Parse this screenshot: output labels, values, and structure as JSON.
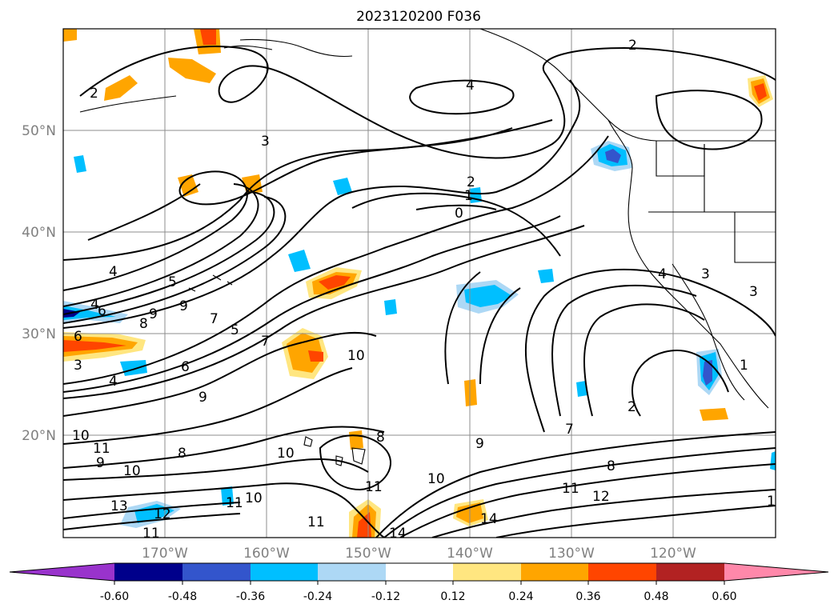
{
  "title": "2023120200 F036",
  "lat_labels": [
    "50°N",
    "40°N",
    "30°N",
    "20°N"
  ],
  "lon_labels": [
    "170°W",
    "160°W",
    "150°W",
    "140°W",
    "130°W",
    "120°W"
  ],
  "colorbar": {
    "ticks": [
      "-0.60",
      "-0.48",
      "-0.36",
      "-0.24",
      "-0.12",
      "0.12",
      "0.24",
      "0.36",
      "0.48",
      "0.60"
    ],
    "colors": [
      "#9933cc",
      "#00008b",
      "#3355cc",
      "#00bfff",
      "#add8f5",
      "#ffffff",
      "#ffe680",
      "#ffa500",
      "#ff4500",
      "#b22222",
      "#ff88aa"
    ]
  },
  "contour_labels": [
    "2",
    "4",
    "2",
    "3",
    "2",
    "1",
    "0",
    "4",
    "5",
    "4",
    "6",
    "9",
    "8",
    "6",
    "9",
    "7",
    "5",
    "7",
    "10",
    "3",
    "4",
    "6",
    "9",
    "10",
    "11",
    "9",
    "10",
    "8",
    "13",
    "12",
    "11",
    "11",
    "10",
    "10",
    "11",
    "8",
    "11",
    "10",
    "14",
    "14",
    "9",
    "7",
    "8",
    "11",
    "12",
    "2",
    "4",
    "3",
    "3",
    "1",
    "1"
  ]
}
